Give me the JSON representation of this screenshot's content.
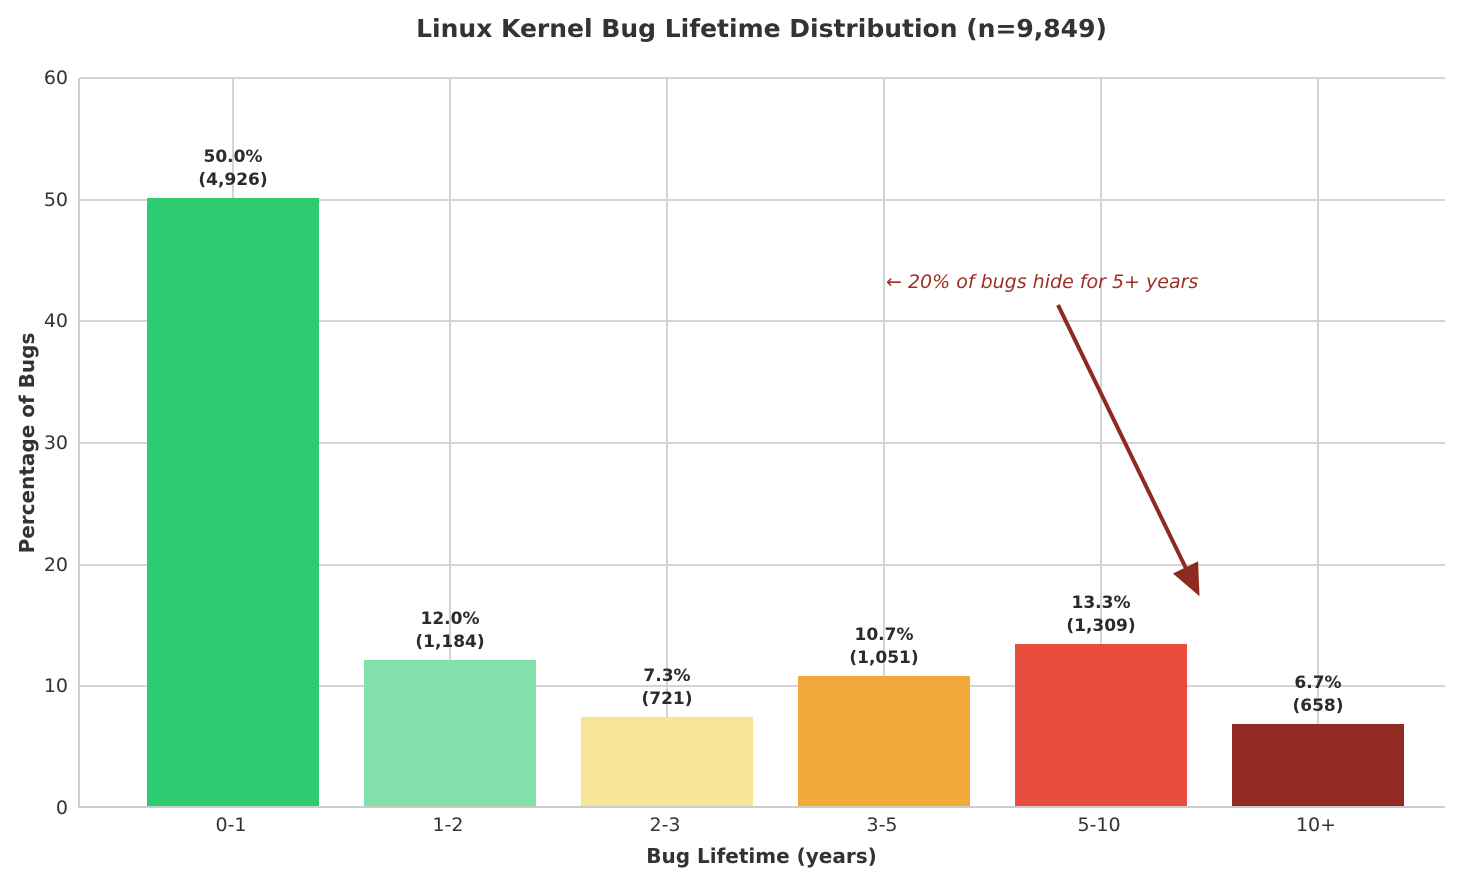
{
  "chart_data": {
    "type": "bar",
    "title": "Linux Kernel Bug Lifetime Distribution (n=9,849)",
    "xlabel": "Bug Lifetime (years)",
    "ylabel": "Percentage of Bugs",
    "categories": [
      "0-1",
      "1-2",
      "2-3",
      "3-5",
      "5-10",
      "10+"
    ],
    "values": [
      50.0,
      12.0,
      7.3,
      10.7,
      13.3,
      6.7
    ],
    "counts": [
      4926,
      1184,
      721,
      1051,
      1309,
      658
    ],
    "bar_colors": [
      "#2ecc71",
      "#82e0aa",
      "#f7e596",
      "#f2a93c",
      "#e74c3c",
      "#922b21"
    ],
    "ylim": [
      0,
      60
    ],
    "yticks": [
      0,
      10,
      20,
      30,
      40,
      50,
      60
    ],
    "grid": true,
    "legend": "none",
    "annotation": {
      "text": "←  20% of bugs hide for 5+ years",
      "color": "#9e2f24",
      "arrow_color": "#8e2a1e"
    }
  }
}
